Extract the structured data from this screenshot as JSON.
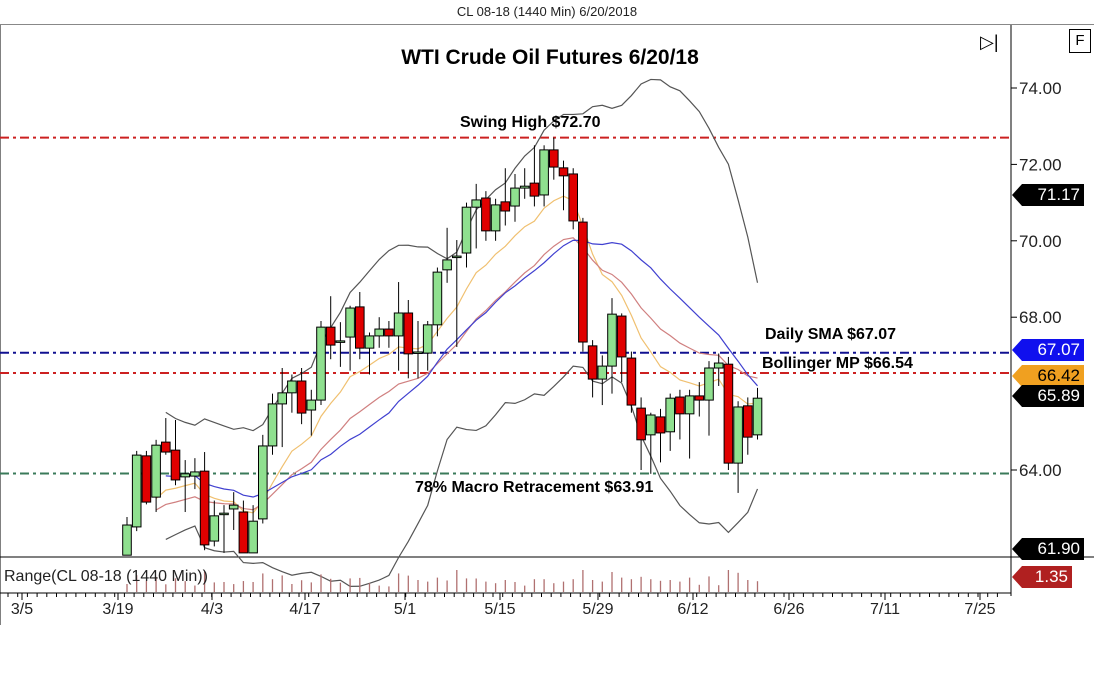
{
  "header": {
    "title": "CL 08-18 (1440 Min)  6/20/2018"
  },
  "controls": {
    "scroll_end_icon": "play-to-end-icon",
    "f_button": "F"
  },
  "chart_data": {
    "type": "candlestick",
    "title": "WTI Crude Oil Futures 6/20/18",
    "ylim": [
      61.2,
      75.4
    ],
    "yticks": [
      "74.00",
      "72.00",
      "70.00",
      "68.00",
      "64.00"
    ],
    "ytick_values": [
      74,
      72,
      70,
      68,
      64
    ],
    "xticks": [
      "3/5",
      "3/19",
      "4/3",
      "4/17",
      "5/1",
      "5/15",
      "5/29",
      "6/12",
      "6/26",
      "7/11",
      "7/25"
    ],
    "colors": {
      "up": "#8fe08f",
      "down": "#e00000",
      "bb_band": "#555555",
      "bb_mid": "#4040d0",
      "ma_fast": "#f0c070",
      "ma_slow": "#d08080"
    },
    "indicators": {
      "bollinger_period": 20,
      "bollinger_std": 2,
      "ma_fast_period": 10,
      "ma_slow_period": 20
    },
    "candles_ohlc": [
      [
        61.77,
        62.77,
        61.77,
        62.56
      ],
      [
        62.51,
        64.5,
        62.4,
        64.39
      ],
      [
        64.37,
        64.5,
        63.1,
        63.16
      ],
      [
        63.29,
        64.79,
        62.9,
        64.65
      ],
      [
        64.73,
        65.36,
        64.4,
        64.47
      ],
      [
        64.52,
        65.31,
        63.6,
        63.74
      ],
      [
        63.82,
        64.26,
        62.9,
        63.9
      ],
      [
        63.84,
        64.31,
        63.5,
        63.95
      ],
      [
        63.97,
        64.47,
        61.9,
        62.04
      ],
      [
        62.14,
        63.2,
        62.0,
        62.8
      ],
      [
        62.87,
        63.08,
        61.83,
        62.87
      ],
      [
        62.98,
        63.42,
        62.43,
        63.08
      ],
      [
        62.9,
        63.2,
        61.83,
        61.83
      ],
      [
        61.83,
        63.08,
        61.83,
        62.66
      ],
      [
        62.72,
        64.92,
        62.6,
        64.63
      ],
      [
        64.63,
        66.0,
        64.4,
        65.73
      ],
      [
        65.73,
        66.67,
        64.6,
        66.02
      ],
      [
        66.02,
        66.5,
        65.5,
        66.33
      ],
      [
        66.33,
        66.67,
        65.2,
        65.49
      ],
      [
        65.57,
        66.1,
        64.9,
        65.83
      ],
      [
        65.83,
        67.9,
        65.7,
        67.74
      ],
      [
        67.74,
        68.55,
        66.9,
        67.27
      ],
      [
        67.38,
        67.87,
        66.7,
        67.38
      ],
      [
        67.48,
        68.3,
        66.6,
        68.24
      ],
      [
        68.27,
        68.66,
        66.9,
        67.19
      ],
      [
        67.19,
        67.6,
        66.5,
        67.51
      ],
      [
        67.51,
        68.0,
        67.2,
        67.69
      ],
      [
        67.69,
        67.9,
        67.2,
        67.51
      ],
      [
        67.51,
        68.92,
        66.6,
        68.11
      ],
      [
        68.11,
        68.45,
        66.4,
        67.04
      ],
      [
        67.09,
        67.9,
        66.4,
        67.09
      ],
      [
        67.06,
        67.9,
        66.6,
        67.8
      ],
      [
        67.8,
        69.3,
        67.5,
        69.18
      ],
      [
        69.24,
        70.34,
        68.9,
        69.5
      ],
      [
        69.6,
        70.02,
        67.22,
        69.6
      ],
      [
        69.68,
        71.0,
        69.3,
        70.88
      ],
      [
        70.88,
        71.49,
        69.8,
        71.07
      ],
      [
        71.12,
        71.3,
        70.0,
        70.26
      ],
      [
        70.26,
        71.1,
        70.0,
        70.94
      ],
      [
        71.02,
        71.9,
        70.4,
        70.78
      ],
      [
        70.91,
        71.75,
        70.5,
        71.38
      ],
      [
        71.38,
        71.9,
        71.1,
        71.43
      ],
      [
        71.51,
        72.5,
        70.9,
        71.17
      ],
      [
        71.2,
        72.5,
        70.9,
        72.38
      ],
      [
        72.38,
        72.7,
        71.6,
        71.93
      ],
      [
        71.91,
        72.1,
        70.8,
        71.7
      ],
      [
        71.75,
        71.9,
        70.3,
        70.52
      ],
      [
        70.49,
        70.6,
        67.1,
        67.35
      ],
      [
        67.25,
        67.4,
        65.9,
        66.38
      ],
      [
        66.38,
        67.0,
        65.7,
        66.72
      ],
      [
        66.72,
        68.5,
        66.0,
        68.08
      ],
      [
        68.03,
        68.1,
        66.3,
        66.96
      ],
      [
        66.93,
        67.1,
        65.5,
        65.7
      ],
      [
        65.62,
        65.9,
        64.0,
        64.79
      ],
      [
        64.92,
        65.5,
        63.9,
        65.44
      ],
      [
        65.39,
        65.6,
        64.2,
        64.97
      ],
      [
        65.0,
        66.0,
        64.5,
        65.88
      ],
      [
        65.91,
        66.1,
        64.8,
        65.47
      ],
      [
        65.47,
        66.1,
        64.3,
        65.94
      ],
      [
        65.94,
        66.3,
        65.4,
        65.83
      ],
      [
        65.83,
        66.85,
        64.9,
        66.67
      ],
      [
        66.67,
        67.05,
        66.2,
        66.8
      ],
      [
        66.77,
        66.96,
        64.0,
        64.18
      ],
      [
        64.18,
        65.8,
        63.4,
        65.65
      ],
      [
        65.68,
        65.9,
        64.4,
        64.86
      ],
      [
        64.92,
        66.15,
        64.8,
        65.88
      ]
    ],
    "levels": [
      {
        "label": "Swing High $72.70",
        "value": 72.7,
        "color": "#cc2020"
      },
      {
        "label": "Daily SMA $67.07",
        "value": 67.07,
        "color": "#101090"
      },
      {
        "label": "Bollinger MP $66.54",
        "value": 66.54,
        "color": "#cc2020"
      },
      {
        "label": "78% Macro Retracement $63.91",
        "value": 63.91,
        "color": "#3a7a5a"
      }
    ],
    "price_tags": [
      {
        "text": "71.17",
        "value": 71.17,
        "bg": "#000000",
        "fg": "#ffffff"
      },
      {
        "text": "67.07",
        "value": 67.07,
        "bg": "#1010ee",
        "fg": "#ffffff"
      },
      {
        "text": "66.42",
        "value": 66.42,
        "bg": "#f0a020",
        "fg": "#000000"
      },
      {
        "text": "65.89",
        "value": 65.89,
        "bg": "#000000",
        "fg": "#ffffff"
      },
      {
        "text": "61.90",
        "value": 61.9,
        "bg": "#000000",
        "fg": "#ffffff"
      }
    ],
    "subpanel": {
      "label": "Range(CL 08-18 (1440 Min))",
      "tag": "1.35",
      "tag_bg": "#b02020",
      "bar_color": "#b07070"
    }
  }
}
